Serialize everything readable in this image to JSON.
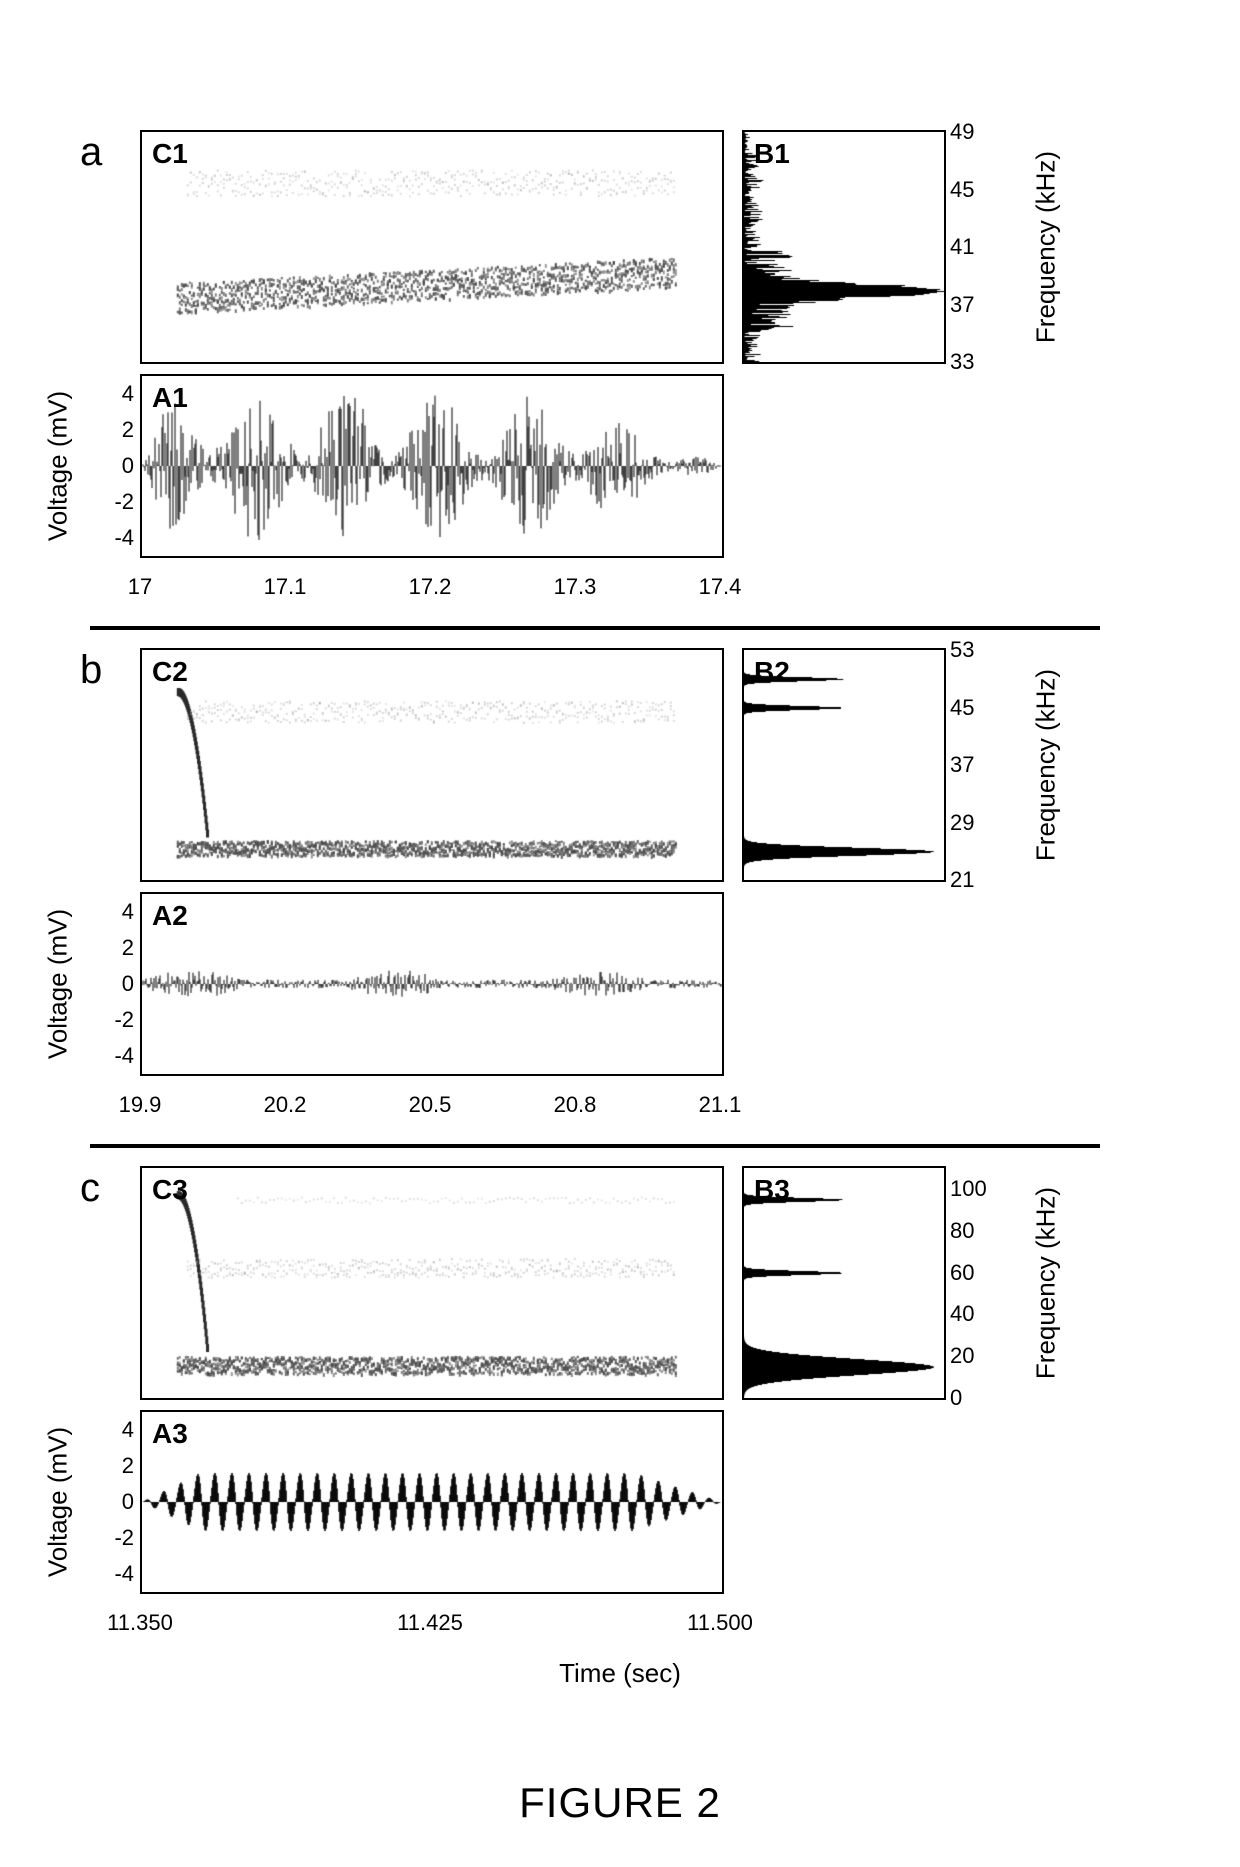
{
  "figure_title": "FIGURE 2",
  "shared_x_label": "Time (sec)",
  "voltage_label": "Voltage (mV)",
  "frequency_label": "Frequency (kHz)",
  "colors": {
    "background": "#ffffff",
    "border": "#000000",
    "waveform": "#000000",
    "spectro_main": "#4a4a4a",
    "spectro_harmonic": "#a0a0a0",
    "side_spectrum": "#000000",
    "divider": "#000000"
  },
  "layout": {
    "spectro_width": 580,
    "spectro_height": 230,
    "side_width": 200,
    "wave_width": 580,
    "wave_height": 180
  },
  "panels": [
    {
      "id": "a",
      "spectro": {
        "label": "C1",
        "ylim": [
          33,
          49
        ],
        "main_band_y": [
          36,
          39
        ],
        "harmonic_band_y": [
          44,
          47
        ],
        "sweep_up": true
      },
      "side": {
        "label": "B1",
        "peak_y": 38,
        "peak_width": 6,
        "spread": true
      },
      "freq_ticks": [
        33,
        37,
        41,
        45,
        49
      ],
      "wave": {
        "label": "A1",
        "ylim": [
          -5,
          5
        ],
        "yticks": [
          -4,
          -2,
          0,
          2,
          4
        ],
        "amplitude": 4.2,
        "density": 1.0,
        "envelope": "burst"
      },
      "time": {
        "xlim": [
          17.0,
          17.4
        ],
        "xticks": [
          17.0,
          17.1,
          17.2,
          17.3,
          17.4
        ]
      }
    },
    {
      "id": "b",
      "spectro": {
        "label": "C2",
        "ylim": [
          21,
          53
        ],
        "main_band_y": [
          24,
          27
        ],
        "harmonic_band_y": [
          42,
          47
        ],
        "sweep_up": false,
        "initial_hook": true
      },
      "side": {
        "label": "B2",
        "peak_y": 25,
        "peak_width": 4,
        "spread": false,
        "extra_lines": [
          45,
          49
        ]
      },
      "freq_ticks": [
        21,
        29,
        37,
        45,
        53
      ],
      "wave": {
        "label": "A2",
        "ylim": [
          -5,
          5
        ],
        "yticks": [
          -4,
          -2,
          0,
          2,
          4
        ],
        "amplitude": 0.8,
        "density": 0.6,
        "envelope": "low"
      },
      "time": {
        "xlim": [
          19.9,
          21.1
        ],
        "xticks": [
          19.9,
          20.2,
          20.5,
          20.8,
          21.1
        ]
      }
    },
    {
      "id": "c",
      "spectro": {
        "label": "C3",
        "ylim": [
          0,
          110
        ],
        "main_band_y": [
          10,
          22
        ],
        "harmonic_band_y": [
          55,
          70
        ],
        "third_band_y": [
          90,
          100
        ],
        "sweep_up": false,
        "initial_hook": true
      },
      "side": {
        "label": "B3",
        "peak_y": 15,
        "peak_width": 8,
        "spread": false,
        "extra_lines": [
          60,
          95
        ]
      },
      "freq_ticks": [
        0,
        20,
        40,
        60,
        80,
        100
      ],
      "wave": {
        "label": "A3",
        "ylim": [
          -5,
          5
        ],
        "yticks": [
          -4,
          -2,
          0,
          2,
          4
        ],
        "amplitude": 1.8,
        "density": 0.25,
        "envelope": "pulses"
      },
      "time": {
        "xlim": [
          11.35,
          11.5
        ],
        "xticks": [
          11.35,
          11.425,
          11.5
        ],
        "decimals": 3
      }
    }
  ]
}
